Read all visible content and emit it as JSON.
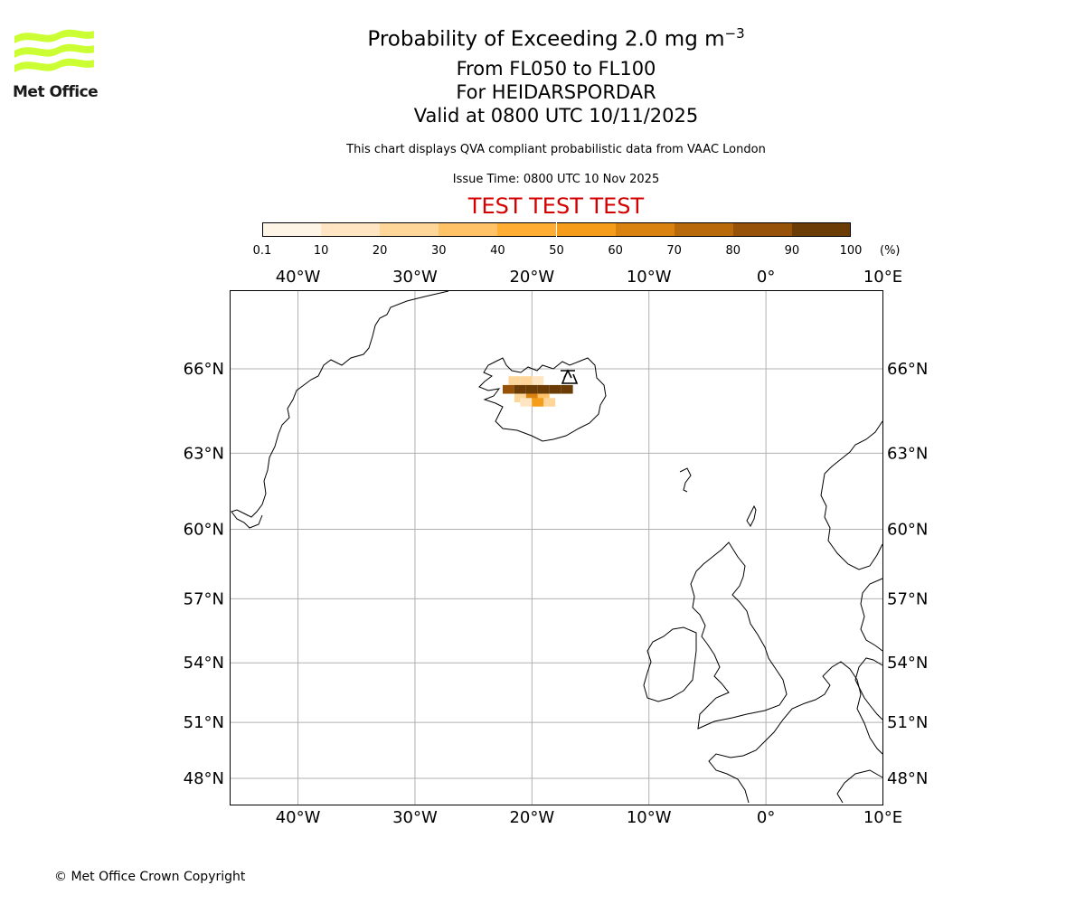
{
  "header": {
    "title_prefix": "Probability of Exceeding 2.0 mg m",
    "title_exponent": "−3",
    "level_range": "From FL050 to FL100",
    "volcano": "For HEIDARSPORDAR",
    "valid_time": "Valid at 0800 UTC 10/11/2025",
    "disclaimer": "This chart displays QVA compliant probabilistic data from VAAC London",
    "issue_time": "Issue Time: 0800 UTC 10 Nov 2025",
    "test_banner": "TEST TEST TEST"
  },
  "logo": {
    "text": "Met Office",
    "color": "#ccff33"
  },
  "colorbar": {
    "unit_label": "(%)",
    "ticks": [
      "0.1",
      "10",
      "20",
      "30",
      "40",
      "50",
      "60",
      "70",
      "80",
      "90",
      "100"
    ],
    "colors": [
      "#fff5e6",
      "#ffe5c2",
      "#ffd699",
      "#ffc266",
      "#ffad33",
      "#f59c1a",
      "#d98210",
      "#b86a0b",
      "#955208",
      "#6b3c06"
    ]
  },
  "axes": {
    "lon_labels": [
      "40°W",
      "30°W",
      "20°W",
      "10°W",
      "0°",
      "10°E"
    ],
    "lat_labels": [
      "66°N",
      "63°N",
      "60°N",
      "57°N",
      "54°N",
      "51°N",
      "48°N"
    ],
    "grid_color": "#b0b0b0"
  },
  "chart_data": {
    "type": "heatmap",
    "title": "Probability of Exceeding 2.0 mg m−3",
    "units": "%",
    "lon_range": [
      -45.8,
      10
    ],
    "lat_range": [
      46.5,
      68.5
    ],
    "volcano_marker": {
      "name": "HEIDARSPORDAR",
      "lon": -16.7,
      "lat": 65.2
    },
    "cells": [
      {
        "lon": -21.5,
        "lat": 65.6,
        "value": 20
      },
      {
        "lon": -20.5,
        "lat": 65.6,
        "value": 20
      },
      {
        "lon": -19.5,
        "lat": 65.6,
        "value": 10
      },
      {
        "lon": -22.0,
        "lat": 65.3,
        "value": 85
      },
      {
        "lon": -21.0,
        "lat": 65.3,
        "value": 95
      },
      {
        "lon": -20.0,
        "lat": 65.3,
        "value": 95
      },
      {
        "lon": -19.0,
        "lat": 65.3,
        "value": 95
      },
      {
        "lon": -18.0,
        "lat": 65.3,
        "value": 95
      },
      {
        "lon": -17.0,
        "lat": 65.3,
        "value": 95
      },
      {
        "lon": -21.0,
        "lat": 65.0,
        "value": 20
      },
      {
        "lon": -20.0,
        "lat": 65.0,
        "value": 60
      },
      {
        "lon": -19.0,
        "lat": 65.0,
        "value": 30
      },
      {
        "lon": -20.5,
        "lat": 64.85,
        "value": 10
      },
      {
        "lon": -19.5,
        "lat": 64.85,
        "value": 55
      },
      {
        "lon": -18.5,
        "lat": 64.85,
        "value": 25
      }
    ]
  },
  "footer": {
    "copyright": "© Met Office Crown Copyright"
  }
}
